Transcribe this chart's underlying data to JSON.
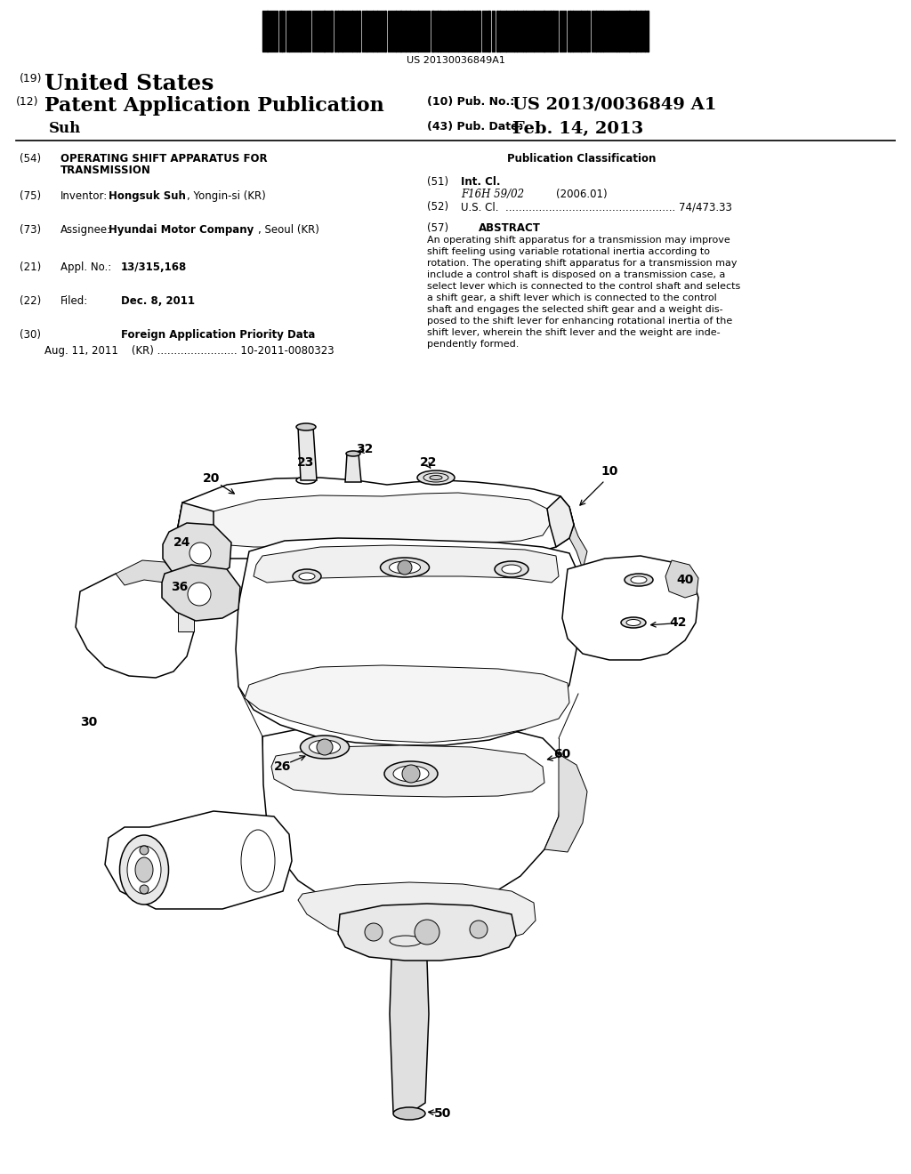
{
  "barcode_text": "US 20130036849A1",
  "title_19": "(19) United States",
  "title_12": "(12) Patent Application Publication",
  "pub_no_label": "(10) Pub. No.:",
  "pub_no_value": "US 2013/0036849 A1",
  "pub_date_label": "(43) Pub. Date:",
  "pub_date_value": "Feb. 14, 2013",
  "inventor_name": "Suh",
  "bg_color": "#ffffff",
  "text_color": "#000000",
  "abstract_text": "An operating shift apparatus for a transmission may improve shift feeling using variable rotational inertia according to rotation. The operating shift apparatus for a transmission may include a control shaft is disposed on a transmission case, a select lever which is connected to the control shaft and selects a shift gear, a shift lever which is connected to the control shaft and engages the selected shift gear and a weight dis-posed to the shift lever for enhancing rotational inertia of the shift lever, wherein the shift lever and the weight are inde-pendently formed."
}
